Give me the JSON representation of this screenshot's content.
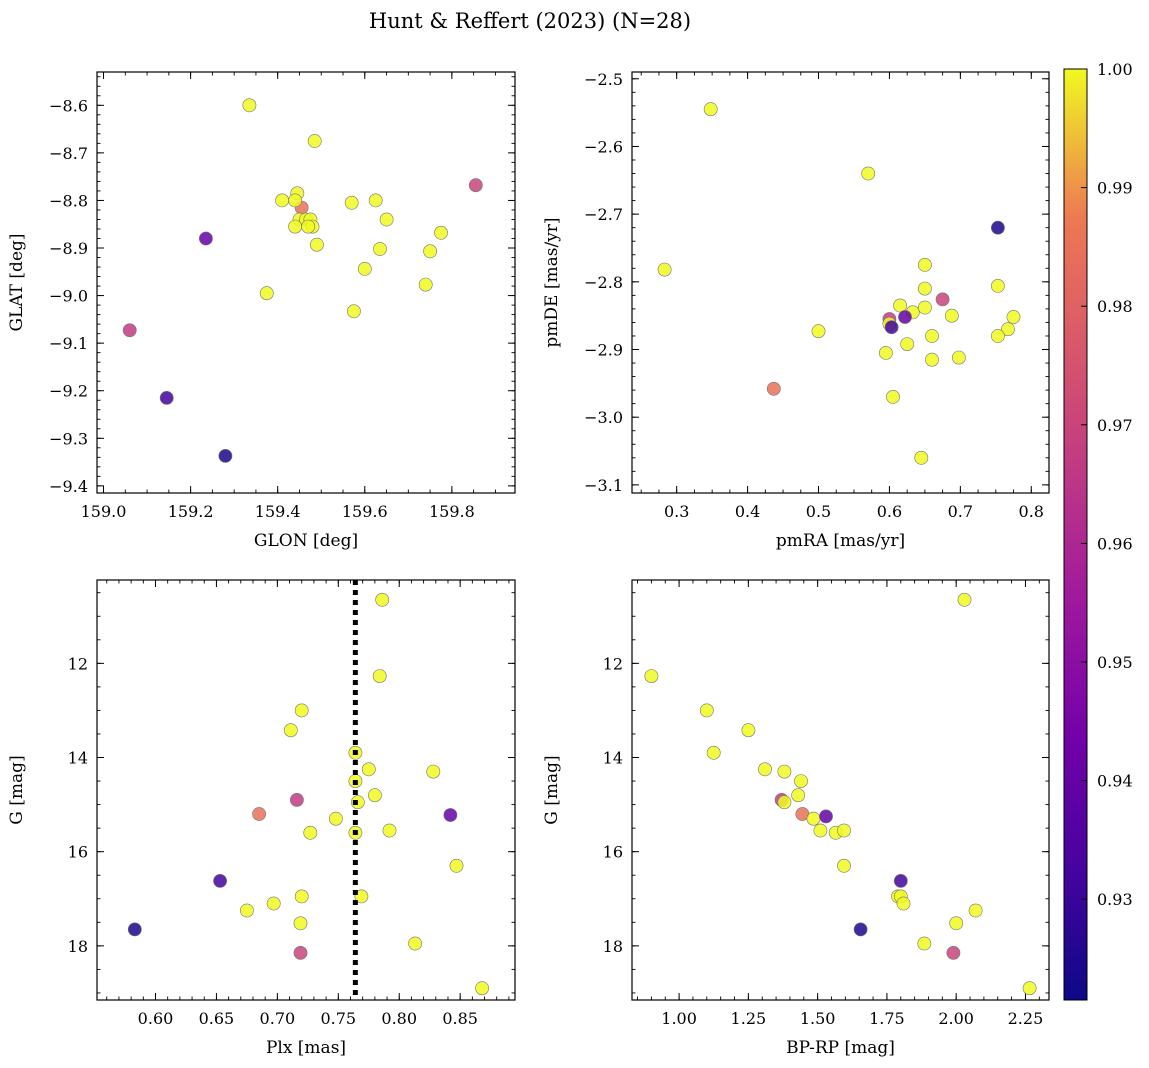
{
  "figure": {
    "title": "Hunt & Reffert (2023) (N=28)",
    "colormap": "plasma",
    "marker_edge_color": "#777777",
    "colorbar": {
      "vmin": 0.9215,
      "vmax": 1.0,
      "ticks": [
        0.93,
        0.94,
        0.95,
        0.96,
        0.97,
        0.98,
        0.99,
        1.0
      ],
      "tick_labels": [
        "0.93",
        "0.94",
        "0.95",
        "0.96",
        "0.97",
        "0.98",
        "0.99",
        "1.00"
      ]
    }
  },
  "chart_data": [
    {
      "type": "scatter",
      "id": "sky",
      "xlabel": "GLON [deg]",
      "ylabel": "GLAT [deg]",
      "xlim": [
        158.985,
        159.945
      ],
      "ylim": [
        -9.415,
        -8.53
      ],
      "xticks": [
        159.0,
        159.2,
        159.4,
        159.6,
        159.8
      ],
      "xtick_labels": [
        "159.0",
        "159.2",
        "159.4",
        "159.6",
        "159.8"
      ],
      "yticks": [
        -9.4,
        -9.3,
        -9.2,
        -9.1,
        -9.0,
        -8.9,
        -8.8,
        -8.7,
        -8.6
      ],
      "ytick_labels": [
        "−9.4",
        "−9.3",
        "−9.2",
        "−9.1",
        "−9.0",
        "−8.9",
        "−8.8",
        "−8.7",
        "−8.6"
      ],
      "x_minor_step": 0.05,
      "y_minor_step": 0.02,
      "x": [
        159.335,
        159.485,
        159.855,
        159.41,
        159.445,
        159.455,
        159.44,
        159.45,
        159.465,
        159.475,
        159.48,
        159.44,
        159.47,
        159.49,
        159.57,
        159.625,
        159.65,
        159.775,
        159.635,
        159.75,
        159.6,
        159.74,
        159.375,
        159.575,
        159.235,
        159.06,
        159.145,
        159.28
      ],
      "y": [
        -8.6,
        -8.675,
        -8.768,
        -8.8,
        -8.785,
        -8.815,
        -8.8,
        -8.84,
        -8.84,
        -8.84,
        -8.855,
        -8.855,
        -8.855,
        -8.893,
        -8.805,
        -8.8,
        -8.84,
        -8.868,
        -8.902,
        -8.907,
        -8.944,
        -8.977,
        -8.995,
        -9.033,
        -8.88,
        -9.073,
        -9.215,
        -9.337
      ],
      "c": [
        1.0,
        1.0,
        0.97,
        1.0,
        1.0,
        0.985,
        1.0,
        1.0,
        1.0,
        1.0,
        1.0,
        1.0,
        1.0,
        1.0,
        1.0,
        1.0,
        1.0,
        1.0,
        1.0,
        1.0,
        1.0,
        1.0,
        1.0,
        1.0,
        0.94,
        0.967,
        0.932,
        0.924
      ]
    },
    {
      "type": "scatter",
      "id": "pm",
      "xlabel": "pmRA [mas/yr]",
      "ylabel": "pmDE [mas/yr]",
      "xlim": [
        0.237,
        0.825
      ],
      "ylim": [
        -3.112,
        -2.49
      ],
      "xticks": [
        0.3,
        0.4,
        0.5,
        0.6,
        0.7,
        0.8
      ],
      "xtick_labels": [
        "0.3",
        "0.4",
        "0.5",
        "0.6",
        "0.7",
        "0.8"
      ],
      "yticks": [
        -3.1,
        -3.0,
        -2.9,
        -2.8,
        -2.7,
        -2.6,
        -2.5
      ],
      "ytick_labels": [
        "−3.1",
        "−3.0",
        "−2.9",
        "−2.8",
        "−2.7",
        "−2.6",
        "−2.5"
      ],
      "x_minor_step": 0.025,
      "y_minor_step": 0.02,
      "x": [
        0.348,
        0.57,
        0.753,
        0.283,
        0.65,
        0.65,
        0.753,
        0.675,
        0.615,
        0.633,
        0.65,
        0.775,
        0.6,
        0.6,
        0.622,
        0.603,
        0.5,
        0.767,
        0.753,
        0.66,
        0.688,
        0.625,
        0.595,
        0.66,
        0.698,
        0.437,
        0.605,
        0.645
      ],
      "y": [
        -2.545,
        -2.64,
        -2.72,
        -2.782,
        -2.775,
        -2.81,
        -2.806,
        -2.826,
        -2.835,
        -2.845,
        -2.838,
        -2.852,
        -2.855,
        -2.862,
        -2.852,
        -2.867,
        -2.873,
        -2.87,
        -2.88,
        -2.88,
        -2.85,
        -2.892,
        -2.905,
        -2.915,
        -2.912,
        -2.958,
        -2.97,
        -3.06
      ],
      "c": [
        1.0,
        1.0,
        0.924,
        1.0,
        1.0,
        1.0,
        1.0,
        0.97,
        1.0,
        1.0,
        1.0,
        1.0,
        0.967,
        1.0,
        0.94,
        0.932,
        1.0,
        1.0,
        1.0,
        1.0,
        1.0,
        1.0,
        1.0,
        1.0,
        1.0,
        0.985,
        1.0,
        1.0
      ]
    },
    {
      "type": "scatter",
      "id": "plx",
      "xlabel": "Plx [mas]",
      "ylabel": "G [mag]",
      "xlim": [
        0.552,
        0.895
      ],
      "ylim": [
        19.15,
        10.23
      ],
      "xticks": [
        0.6,
        0.65,
        0.7,
        0.75,
        0.8,
        0.85
      ],
      "xtick_labels": [
        "0.60",
        "0.65",
        "0.70",
        "0.75",
        "0.80",
        "0.85"
      ],
      "yticks": [
        12,
        14,
        16,
        18
      ],
      "ytick_labels": [
        "12",
        "14",
        "16",
        "18"
      ],
      "x_minor_step": 0.01,
      "y_minor_step": 0.5,
      "vline": {
        "x": 0.764,
        "style": "dotted"
      },
      "x": [
        0.786,
        0.784,
        0.72,
        0.711,
        0.764,
        0.775,
        0.828,
        0.78,
        0.766,
        0.764,
        0.716,
        0.685,
        0.842,
        0.748,
        0.792,
        0.727,
        0.764,
        0.847,
        0.653,
        0.72,
        0.769,
        0.697,
        0.675,
        0.719,
        0.583,
        0.813,
        0.719,
        0.868
      ],
      "y": [
        10.65,
        12.27,
        13.0,
        13.42,
        13.9,
        14.25,
        14.3,
        14.8,
        14.95,
        14.5,
        14.9,
        15.2,
        15.22,
        15.3,
        15.55,
        15.6,
        15.6,
        16.3,
        16.62,
        16.95,
        16.95,
        17.1,
        17.25,
        17.52,
        17.65,
        17.95,
        18.15,
        18.9
      ],
      "c": [
        1.0,
        1.0,
        1.0,
        1.0,
        1.0,
        1.0,
        1.0,
        1.0,
        1.0,
        1.0,
        0.967,
        0.985,
        0.94,
        1.0,
        1.0,
        1.0,
        1.0,
        1.0,
        0.932,
        1.0,
        1.0,
        1.0,
        1.0,
        1.0,
        0.924,
        1.0,
        0.97,
        1.0
      ]
    },
    {
      "type": "scatter",
      "id": "cmd",
      "xlabel": "BP-RP [mag]",
      "ylabel": "G [mag]",
      "xlim": [
        0.83,
        2.335
      ],
      "ylim": [
        19.15,
        10.23
      ],
      "xticks": [
        1.0,
        1.25,
        1.5,
        1.75,
        2.0,
        2.25
      ],
      "xtick_labels": [
        "1.00",
        "1.25",
        "1.50",
        "1.75",
        "2.00",
        "2.25"
      ],
      "yticks": [
        12,
        14,
        16,
        18
      ],
      "ytick_labels": [
        "12",
        "14",
        "16",
        "18"
      ],
      "x_minor_step": 0.05,
      "y_minor_step": 0.5,
      "x": [
        2.03,
        0.9,
        1.1,
        1.125,
        1.25,
        1.31,
        1.38,
        1.44,
        1.43,
        1.37,
        1.38,
        1.445,
        1.485,
        1.53,
        1.51,
        1.565,
        1.595,
        1.595,
        1.8,
        1.79,
        1.8,
        1.81,
        2.07,
        2.0,
        1.655,
        1.885,
        1.99,
        2.265
      ],
      "y": [
        10.65,
        12.27,
        13.0,
        13.9,
        13.42,
        14.25,
        14.3,
        14.5,
        14.8,
        14.9,
        14.95,
        15.2,
        15.3,
        15.25,
        15.55,
        15.6,
        15.55,
        16.3,
        16.62,
        16.95,
        16.95,
        17.1,
        17.25,
        17.52,
        17.65,
        17.95,
        18.15,
        18.9
      ],
      "c": [
        1.0,
        1.0,
        1.0,
        1.0,
        1.0,
        1.0,
        1.0,
        1.0,
        1.0,
        0.967,
        1.0,
        0.985,
        1.0,
        0.94,
        1.0,
        1.0,
        1.0,
        1.0,
        0.932,
        1.0,
        1.0,
        1.0,
        1.0,
        1.0,
        0.924,
        1.0,
        0.97,
        1.0
      ]
    }
  ]
}
